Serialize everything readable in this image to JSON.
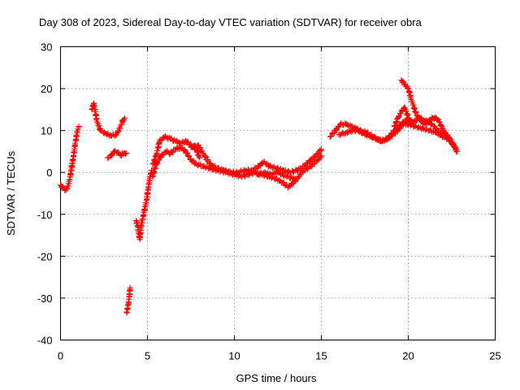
{
  "chart_data": {
    "type": "scatter",
    "title": "Day 308 of 2023, Sidereal Day-to-day VTEC variation (SDTVAR) for receiver obra",
    "xlabel": "GPS time / hours",
    "ylabel": "SDTVAR / TECUs",
    "xlim": [
      0,
      25
    ],
    "ylim": [
      -40,
      30
    ],
    "xticks": [
      "0",
      "5",
      "10",
      "15",
      "20",
      "25"
    ],
    "yticks": [
      "30",
      "20",
      "10",
      "0",
      "-10",
      "-20",
      "-30",
      "-40"
    ],
    "grid": true,
    "marker": "+",
    "color": "#ff0000",
    "series": [
      {
        "name": "SDTVAR",
        "segments": [
          [
            [
              0.0,
              -3.0
            ],
            [
              0.15,
              -3.8
            ],
            [
              0.3,
              -4.2
            ],
            [
              0.45,
              -3.2
            ],
            [
              0.55,
              -1.0
            ],
            [
              0.65,
              1.5
            ],
            [
              0.75,
              4.0
            ],
            [
              0.85,
              7.0
            ],
            [
              0.95,
              9.5
            ],
            [
              1.05,
              11.0
            ]
          ],
          [
            [
              1.8,
              15.0
            ],
            [
              1.9,
              16.5
            ],
            [
              2.0,
              14.5
            ],
            [
              2.1,
              12.0
            ],
            [
              2.3,
              10.0
            ],
            [
              2.6,
              9.2
            ],
            [
              2.9,
              8.8
            ],
            [
              3.2,
              9.0
            ],
            [
              3.4,
              10.5
            ],
            [
              3.6,
              12.5
            ],
            [
              3.7,
              13.0
            ]
          ],
          [
            [
              2.7,
              3.5
            ],
            [
              2.9,
              4.0
            ],
            [
              3.1,
              5.0
            ],
            [
              3.3,
              4.8
            ],
            [
              3.5,
              4.0
            ],
            [
              3.6,
              4.5
            ],
            [
              3.7,
              4.6
            ],
            [
              3.8,
              4.6
            ]
          ],
          [
            [
              3.8,
              -33.5
            ],
            [
              3.9,
              -31.5
            ],
            [
              3.95,
              -29.5
            ],
            [
              4.0,
              -27.5
            ]
          ],
          [
            [
              4.35,
              -11.5
            ],
            [
              4.45,
              -13.0
            ],
            [
              4.55,
              -16.0
            ],
            [
              4.65,
              -12.5
            ],
            [
              4.8,
              -9.5
            ],
            [
              4.95,
              -6.5
            ],
            [
              5.05,
              -3.5
            ],
            [
              5.15,
              -1.0
            ],
            [
              5.25,
              0.5
            ]
          ],
          [
            [
              5.3,
              2.0
            ],
            [
              5.5,
              4.0
            ],
            [
              5.7,
              7.5
            ],
            [
              6.0,
              8.5
            ],
            [
              6.3,
              8.0
            ],
            [
              6.6,
              7.5
            ],
            [
              6.9,
              7.0
            ],
            [
              7.2,
              7.5
            ],
            [
              7.5,
              6.5
            ],
            [
              7.8,
              5.5
            ],
            [
              8.0,
              3.5
            ]
          ],
          [
            [
              5.3,
              -1.0
            ],
            [
              5.5,
              2.0
            ],
            [
              5.8,
              4.0
            ],
            [
              6.1,
              5.0
            ],
            [
              6.3,
              4.5
            ],
            [
              6.6,
              5.5
            ],
            [
              6.9,
              6.0
            ],
            [
              7.2,
              5.0
            ],
            [
              7.5,
              3.0
            ],
            [
              7.8,
              2.0
            ],
            [
              8.2,
              1.5
            ],
            [
              8.6,
              1.0
            ],
            [
              9.0,
              0.5
            ],
            [
              9.5,
              0.0
            ],
            [
              10.0,
              -0.5
            ],
            [
              10.4,
              -1.0
            ],
            [
              10.8,
              -0.5
            ],
            [
              11.2,
              0.0
            ],
            [
              11.6,
              -0.5
            ],
            [
              12.0,
              -1.0
            ],
            [
              12.4,
              -1.5
            ],
            [
              12.8,
              -2.5
            ],
            [
              13.1,
              -3.5
            ],
            [
              13.4,
              -2.5
            ],
            [
              13.7,
              -1.0
            ],
            [
              14.0,
              0.5
            ],
            [
              14.4,
              1.5
            ],
            [
              14.8,
              3.0
            ],
            [
              15.0,
              4.0
            ]
          ],
          [
            [
              7.5,
              6.0
            ],
            [
              7.9,
              6.5
            ],
            [
              8.2,
              4.5
            ],
            [
              8.6,
              2.0
            ],
            [
              9.0,
              1.0
            ],
            [
              9.4,
              0.5
            ],
            [
              9.8,
              0.0
            ],
            [
              10.2,
              0.0
            ],
            [
              10.6,
              0.5
            ],
            [
              11.0,
              0.5
            ],
            [
              11.4,
              1.5
            ],
            [
              11.7,
              2.5
            ],
            [
              12.0,
              1.5
            ],
            [
              12.4,
              1.0
            ],
            [
              12.8,
              0.5
            ],
            [
              13.2,
              0.0
            ],
            [
              13.6,
              0.5
            ],
            [
              14.0,
              1.5
            ],
            [
              14.4,
              3.0
            ],
            [
              14.8,
              4.5
            ],
            [
              15.0,
              5.5
            ]
          ],
          [
            [
              11.3,
              -0.5
            ],
            [
              11.7,
              0.0
            ],
            [
              12.0,
              -0.5
            ],
            [
              12.5,
              0.0
            ],
            [
              13.0,
              -1.0
            ],
            [
              13.5,
              -1.5
            ]
          ],
          [
            [
              15.5,
              8.5
            ],
            [
              15.8,
              10.0
            ],
            [
              16.1,
              11.5
            ],
            [
              16.4,
              11.5
            ],
            [
              16.7,
              11.0
            ],
            [
              17.0,
              10.5
            ],
            [
              17.3,
              9.5
            ],
            [
              17.6,
              9.0
            ],
            [
              17.9,
              8.5
            ],
            [
              18.2,
              8.0
            ],
            [
              18.5,
              7.5
            ],
            [
              18.8,
              8.0
            ],
            [
              19.1,
              9.0
            ],
            [
              19.4,
              10.0
            ],
            [
              19.7,
              12.0
            ],
            [
              20.0,
              12.5
            ],
            [
              20.3,
              12.0
            ],
            [
              20.6,
              13.0
            ],
            [
              20.9,
              12.5
            ],
            [
              21.2,
              12.0
            ],
            [
              21.5,
              11.0
            ],
            [
              21.8,
              9.5
            ],
            [
              22.1,
              8.5
            ],
            [
              22.4,
              7.5
            ],
            [
              22.7,
              6.0
            ],
            [
              22.8,
              5.0
            ]
          ],
          [
            [
              16.0,
              9.0
            ],
            [
              16.4,
              9.5
            ],
            [
              16.8,
              10.0
            ],
            [
              17.2,
              10.0
            ],
            [
              17.6,
              9.5
            ],
            [
              18.0,
              8.5
            ],
            [
              18.4,
              7.5
            ],
            [
              18.8,
              8.0
            ],
            [
              19.2,
              10.0
            ],
            [
              19.6,
              11.5
            ],
            [
              20.0,
              11.5
            ],
            [
              20.4,
              11.0
            ],
            [
              20.8,
              10.5
            ],
            [
              21.2,
              10.0
            ],
            [
              21.6,
              9.5
            ],
            [
              22.0,
              8.5
            ]
          ],
          [
            [
              19.2,
              11.0
            ],
            [
              19.4,
              13.0
            ],
            [
              19.6,
              14.5
            ],
            [
              19.8,
              15.5
            ],
            [
              20.0,
              13.0
            ],
            [
              20.2,
              11.5
            ]
          ],
          [
            [
              19.6,
              22.0
            ],
            [
              19.8,
              21.0
            ],
            [
              20.0,
              20.0
            ],
            [
              20.2,
              17.0
            ],
            [
              20.4,
              14.5
            ],
            [
              20.6,
              13.0
            ],
            [
              20.8,
              12.0
            ],
            [
              21.0,
              11.5
            ],
            [
              21.2,
              12.5
            ],
            [
              21.4,
              13.0
            ],
            [
              21.6,
              13.0
            ],
            [
              21.8,
              12.0
            ],
            [
              22.0,
              10.0
            ],
            [
              22.2,
              9.0
            ],
            [
              22.4,
              8.0
            ],
            [
              22.6,
              6.5
            ],
            [
              22.8,
              5.0
            ]
          ]
        ]
      }
    ]
  }
}
